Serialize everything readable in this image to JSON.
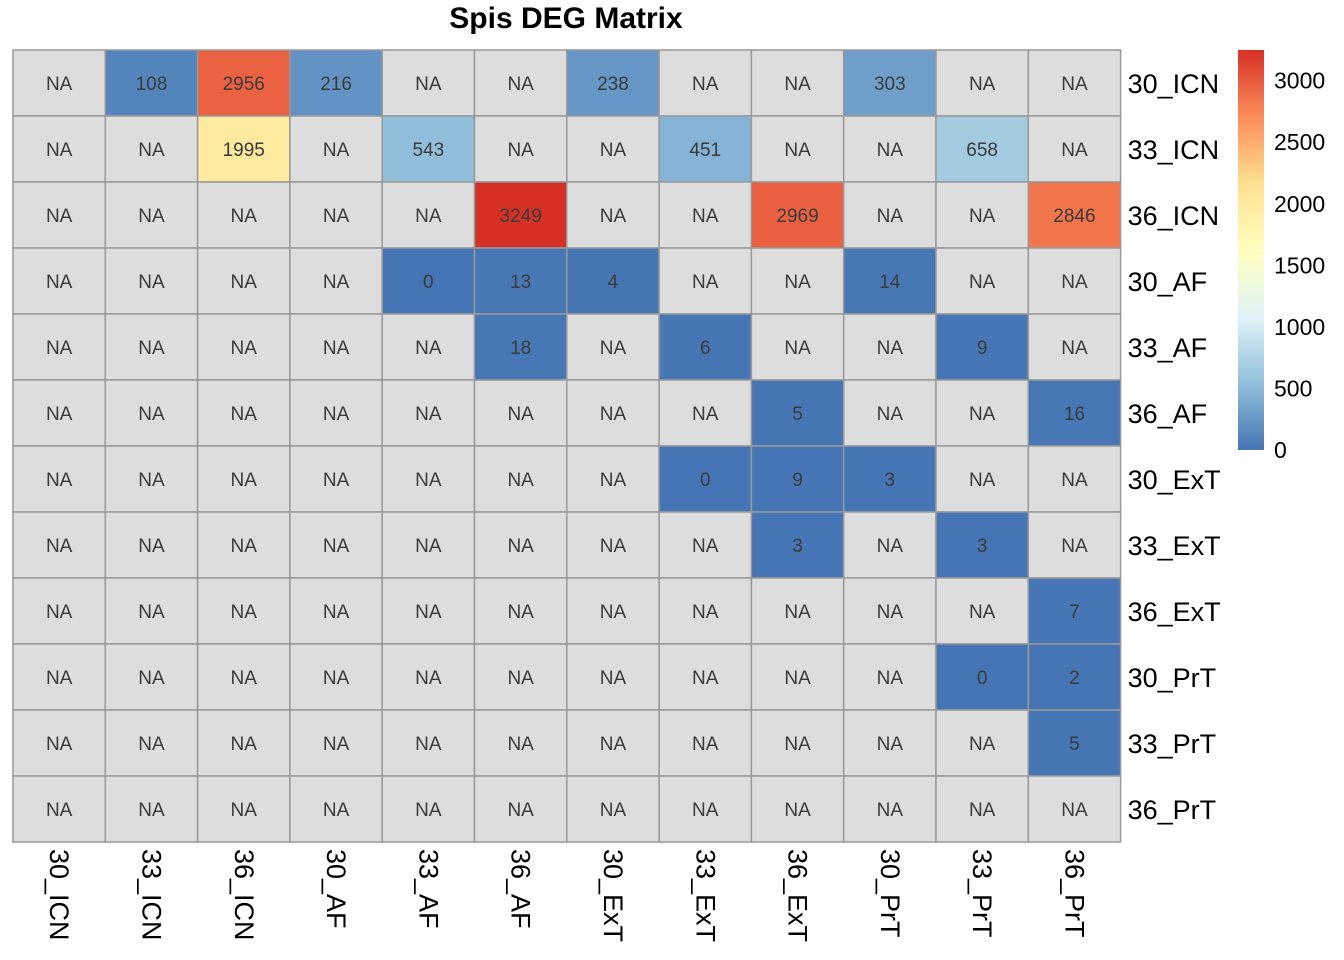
{
  "chart_data": {
    "type": "heatmap",
    "title": "Spis DEG Matrix",
    "na_label": "NA",
    "rows": [
      "30_ICN",
      "33_ICN",
      "36_ICN",
      "30_AF",
      "33_AF",
      "36_AF",
      "30_ExT",
      "33_ExT",
      "36_ExT",
      "30_PrT",
      "33_PrT",
      "36_PrT"
    ],
    "columns": [
      "30_ICN",
      "33_ICN",
      "36_ICN",
      "30_AF",
      "33_AF",
      "36_AF",
      "30_ExT",
      "33_ExT",
      "36_ExT",
      "30_PrT",
      "33_PrT",
      "36_PrT"
    ],
    "values": [
      [
        null,
        108,
        2956,
        216,
        null,
        null,
        238,
        null,
        null,
        303,
        null,
        null
      ],
      [
        null,
        null,
        1995,
        null,
        543,
        null,
        null,
        451,
        null,
        null,
        658,
        null
      ],
      [
        null,
        null,
        null,
        null,
        null,
        3249,
        null,
        null,
        2969,
        null,
        null,
        2846
      ],
      [
        null,
        null,
        null,
        null,
        0,
        13,
        4,
        null,
        null,
        14,
        null,
        null
      ],
      [
        null,
        null,
        null,
        null,
        null,
        18,
        null,
        6,
        null,
        null,
        9,
        null
      ],
      [
        null,
        null,
        null,
        null,
        null,
        null,
        null,
        null,
        5,
        null,
        null,
        16
      ],
      [
        null,
        null,
        null,
        null,
        null,
        null,
        null,
        0,
        9,
        3,
        null,
        null
      ],
      [
        null,
        null,
        null,
        null,
        null,
        null,
        null,
        null,
        3,
        null,
        3,
        null
      ],
      [
        null,
        null,
        null,
        null,
        null,
        null,
        null,
        null,
        null,
        null,
        null,
        7
      ],
      [
        null,
        null,
        null,
        null,
        null,
        null,
        null,
        null,
        null,
        null,
        0,
        2
      ],
      [
        null,
        null,
        null,
        null,
        null,
        null,
        null,
        null,
        null,
        null,
        null,
        5
      ],
      [
        null,
        null,
        null,
        null,
        null,
        null,
        null,
        null,
        null,
        null,
        null,
        null
      ]
    ],
    "color_scale": {
      "min": 0,
      "max": 3249,
      "stops": [
        {
          "value": 0,
          "color": "#4575b4"
        },
        {
          "value": 541,
          "color": "#91bfdb"
        },
        {
          "value": 1083,
          "color": "#e0f3f8"
        },
        {
          "value": 1624,
          "color": "#ffffbf"
        },
        {
          "value": 2166,
          "color": "#fee090"
        },
        {
          "value": 2707,
          "color": "#fc8d59"
        },
        {
          "value": 3249,
          "color": "#d73027"
        }
      ],
      "na_color": "#dddddd",
      "border_color": "#999999"
    },
    "legend": {
      "position": "right",
      "ticks": [
        0,
        500,
        1000,
        1500,
        2000,
        2500,
        3000
      ]
    }
  }
}
